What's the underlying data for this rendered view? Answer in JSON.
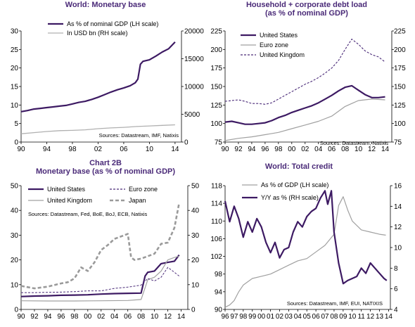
{
  "chart_data": [
    {
      "type": "line",
      "title": "World: Monetary base",
      "title2": "",
      "source": "Sources: Datastream, IMF, Natixis",
      "legend_position": "top-center",
      "x_ticks": [
        "90",
        "94",
        "98",
        "02",
        "06",
        "10",
        "14"
      ],
      "ylim": [
        0,
        30
      ],
      "yticks": [
        0,
        5,
        10,
        15,
        20,
        25,
        30
      ],
      "ylim_right": [
        0,
        20000
      ],
      "yticks_right": [
        0,
        5000,
        10000,
        15000,
        20000
      ],
      "series": [
        {
          "name": "As % of nominal GDP (LH scale)",
          "axis": "left",
          "color": "#3d1a63",
          "width": 2.2,
          "dash": "",
          "x": [
            1990,
            1991,
            1992,
            1993,
            1994,
            1995,
            1996,
            1997,
            1998,
            1999,
            2000,
            2001,
            2002,
            2003,
            2004,
            2005,
            2006,
            2007,
            2007.8,
            2008.2,
            2008.6,
            2009,
            2010,
            2011,
            2012,
            2013,
            2014
          ],
          "y": [
            8.2,
            8.5,
            8.9,
            9.1,
            9.3,
            9.5,
            9.7,
            9.9,
            10.3,
            10.7,
            11.0,
            11.5,
            12.1,
            12.8,
            13.5,
            14.1,
            14.6,
            15.2,
            16.0,
            17.0,
            21.0,
            21.8,
            22.2,
            23.2,
            24.3,
            25.2,
            27.0
          ]
        },
        {
          "name": "In USD bn (RH scale)",
          "axis": "right",
          "color": "#b0b0b0",
          "width": 1.3,
          "dash": "",
          "x": [
            1990,
            1992,
            1994,
            1996,
            1998,
            2000,
            2002,
            2004,
            2006,
            2008,
            2010,
            2012,
            2014
          ],
          "y": [
            1500,
            1700,
            1900,
            2050,
            2100,
            2200,
            2400,
            2550,
            2650,
            2800,
            2900,
            3000,
            3100
          ]
        }
      ]
    },
    {
      "type": "line",
      "title": "Household + corporate debt load",
      "title2": "(as % of nominal GDP)",
      "source": "Sources: Datastream, Natixis",
      "legend_position": "top-left",
      "x_ticks": [
        "90",
        "92",
        "94",
        "96",
        "98",
        "00",
        "02",
        "04",
        "06",
        "08",
        "10",
        "12",
        "14"
      ],
      "ylim": [
        75,
        225
      ],
      "yticks": [
        75,
        100,
        125,
        150,
        175,
        200,
        225
      ],
      "ylim_right": [
        75,
        225
      ],
      "yticks_right": [
        75,
        100,
        125,
        150,
        175,
        200,
        225
      ],
      "series": [
        {
          "name": "United States",
          "axis": "left",
          "color": "#3d1a63",
          "width": 2.2,
          "dash": "",
          "x": [
            1990,
            1991,
            1992,
            1993,
            1994,
            1995,
            1996,
            1997,
            1998,
            1999,
            2000,
            2001,
            2002,
            2003,
            2004,
            2005,
            2006,
            2007,
            2008,
            2009,
            2010,
            2011,
            2012,
            2013,
            2014
          ],
          "y": [
            102,
            103,
            101,
            99,
            99,
            100,
            101,
            104,
            108,
            111,
            115,
            118,
            121,
            124,
            128,
            133,
            138,
            144,
            149,
            151,
            145,
            139,
            135,
            135,
            136
          ]
        },
        {
          "name": "Euro zone",
          "axis": "left",
          "color": "#a0a0a0",
          "width": 1.2,
          "dash": "",
          "x": [
            1990,
            1992,
            1994,
            1996,
            1998,
            2000,
            2002,
            2004,
            2006,
            2008,
            2009,
            2010,
            2012,
            2014
          ],
          "y": [
            77,
            80,
            82,
            85,
            88,
            93,
            98,
            103,
            110,
            123,
            127,
            131,
            133,
            132
          ]
        },
        {
          "name": "United Kingdom",
          "axis": "left",
          "color": "#4a2a78",
          "width": 1.1,
          "dash": "3,2",
          "x": [
            1990,
            1991,
            1992,
            1993,
            1994,
            1995,
            1996,
            1997,
            1998,
            1999,
            2000,
            2001,
            2002,
            2003,
            2004,
            2005,
            2006,
            2007,
            2008,
            2009,
            2010,
            2011,
            2012,
            2013,
            2014
          ],
          "y": [
            130,
            131,
            132,
            130,
            127,
            127,
            126,
            128,
            133,
            138,
            143,
            148,
            153,
            157,
            162,
            168,
            175,
            185,
            200,
            214,
            207,
            198,
            193,
            190,
            183
          ]
        }
      ]
    },
    {
      "type": "line",
      "title": "Chart 2B",
      "title2": "Monetary base (as % of nominal GDP)",
      "source": "Sources: Datastream,  Fed, BoE, BoJ,  ECB, Natixis",
      "legend_position": "top",
      "x_ticks": [
        "90",
        "92",
        "94",
        "96",
        "98",
        "00",
        "02",
        "04",
        "06",
        "08",
        "10",
        "12",
        "14"
      ],
      "ylim": [
        0,
        50
      ],
      "yticks": [
        0,
        10,
        20,
        30,
        40,
        50
      ],
      "ylim_right": [
        0,
        50
      ],
      "yticks_right": [
        0,
        10,
        20,
        30,
        40,
        50
      ],
      "series": [
        {
          "name": "United States",
          "axis": "left",
          "color": "#3d1a63",
          "width": 2.2,
          "dash": "",
          "x": [
            1990,
            1992,
            1994,
            1996,
            1998,
            2000,
            2002,
            2004,
            2006,
            2008,
            2008.6,
            2009,
            2010,
            2011,
            2012,
            2013,
            2013.7
          ],
          "y": [
            5.2,
            5.4,
            5.5,
            5.7,
            5.8,
            5.9,
            6.2,
            6.4,
            6.5,
            6.6,
            13.5,
            15.0,
            15.5,
            18.5,
            19.0,
            19.5,
            22.0
          ]
        },
        {
          "name": "United Kingdom",
          "axis": "left",
          "color": "#a0a0a0",
          "width": 1.2,
          "dash": "",
          "x": [
            1990,
            1994,
            1998,
            2002,
            2006,
            2008,
            2009,
            2010,
            2011,
            2012,
            2013,
            2013.7
          ],
          "y": [
            3.5,
            3.4,
            3.4,
            3.5,
            3.6,
            4.0,
            12.0,
            13.0,
            15.5,
            20.0,
            21.0,
            21.5
          ]
        },
        {
          "name": "Euro zone",
          "axis": "left",
          "color": "#4a2a78",
          "width": 1.0,
          "dash": "3,2",
          "x": [
            1990,
            1992,
            1994,
            1996,
            1998,
            2000,
            2002,
            2004,
            2006,
            2008,
            2009,
            2010,
            2011,
            2012,
            2013,
            2013.7
          ],
          "y": [
            6.8,
            6.8,
            6.9,
            7.0,
            7.2,
            7.5,
            7.5,
            8.5,
            9.0,
            9.8,
            12.5,
            11.5,
            13.0,
            17.0,
            15.0,
            13.5
          ]
        },
        {
          "name": "Japan",
          "axis": "left",
          "color": "#9a9a9a",
          "width": 2.6,
          "dash": "5,3",
          "x": [
            1990,
            1992,
            1994,
            1996,
            1997,
            1998,
            1999,
            2000,
            2001,
            2002,
            2003,
            2004,
            2005,
            2006,
            2006.5,
            2007,
            2008,
            2009,
            2010,
            2011,
            2012,
            2013,
            2013.7
          ],
          "y": [
            9.5,
            8.5,
            9.2,
            10.5,
            11.0,
            12.5,
            17.0,
            15.5,
            19.0,
            24.0,
            26.0,
            28.5,
            29.5,
            30.5,
            21.0,
            20.0,
            20.5,
            21.5,
            22.5,
            26.5,
            27.0,
            33.0,
            43.0
          ]
        }
      ]
    },
    {
      "type": "line",
      "title": "World:  Total credit",
      "title2": "",
      "source": "Sources: Datastream, IMF, EUI, NATIXIS",
      "legend_position": "top-left",
      "x_ticks": [
        "96",
        "97",
        "98",
        "99",
        "00",
        "01",
        "02",
        "03",
        "04",
        "05",
        "06",
        "07",
        "08",
        "09",
        "10",
        "11",
        "12",
        "13",
        "14"
      ],
      "ylim": [
        90,
        118
      ],
      "yticks": [
        90,
        94,
        98,
        102,
        106,
        110,
        114,
        118
      ],
      "ylim_right": [
        4,
        16
      ],
      "yticks_right": [
        4,
        6,
        8,
        10,
        12,
        14,
        16
      ],
      "series": [
        {
          "name": "As % of GDP (LH scale)",
          "axis": "left",
          "color": "#a0a0a0",
          "width": 1.2,
          "dash": "",
          "x": [
            1996,
            1996.5,
            1997,
            1997.5,
            1998,
            1999,
            2000,
            2001,
            2002,
            2003,
            2004,
            2005,
            2006,
            2007,
            2008,
            2008.5,
            2009,
            2009.5,
            2010,
            2011,
            2012,
            2013,
            2013.7
          ],
          "y": [
            90.5,
            91.0,
            92.0,
            94.0,
            95.5,
            97.0,
            97.5,
            98.0,
            99.0,
            100.0,
            101.0,
            101.5,
            103.0,
            104.5,
            107.0,
            113.5,
            115.5,
            112.5,
            110.0,
            108.0,
            107.5,
            107.0,
            106.8
          ]
        },
        {
          "name": "Y/Y as % (RH scale)",
          "axis": "right",
          "color": "#3d1a63",
          "width": 2.2,
          "dash": "",
          "x": [
            1996,
            1996.5,
            1997,
            1997.5,
            1998,
            1998.5,
            1999,
            1999.5,
            2000,
            2000.5,
            2001,
            2001.5,
            2002,
            2002.5,
            2003,
            2003.5,
            2004,
            2004.5,
            2005,
            2005.5,
            2006,
            2006.5,
            2007,
            2007.3,
            2007.7,
            2008,
            2008.5,
            2009,
            2009.5,
            2010,
            2010.5,
            2011,
            2011.5,
            2012,
            2012.5,
            2013,
            2013.5,
            2013.8
          ],
          "y": [
            14.5,
            12.5,
            14.0,
            12.8,
            11.0,
            12.5,
            11.5,
            12.8,
            12.0,
            10.5,
            9.5,
            10.5,
            9.0,
            9.8,
            10.0,
            11.5,
            12.5,
            12.0,
            13.0,
            13.5,
            13.8,
            14.8,
            15.5,
            14.2,
            15.5,
            11.5,
            8.5,
            6.5,
            6.8,
            7.0,
            7.2,
            8.0,
            7.5,
            8.5,
            8.0,
            7.5,
            7.0,
            6.8
          ]
        }
      ]
    }
  ]
}
